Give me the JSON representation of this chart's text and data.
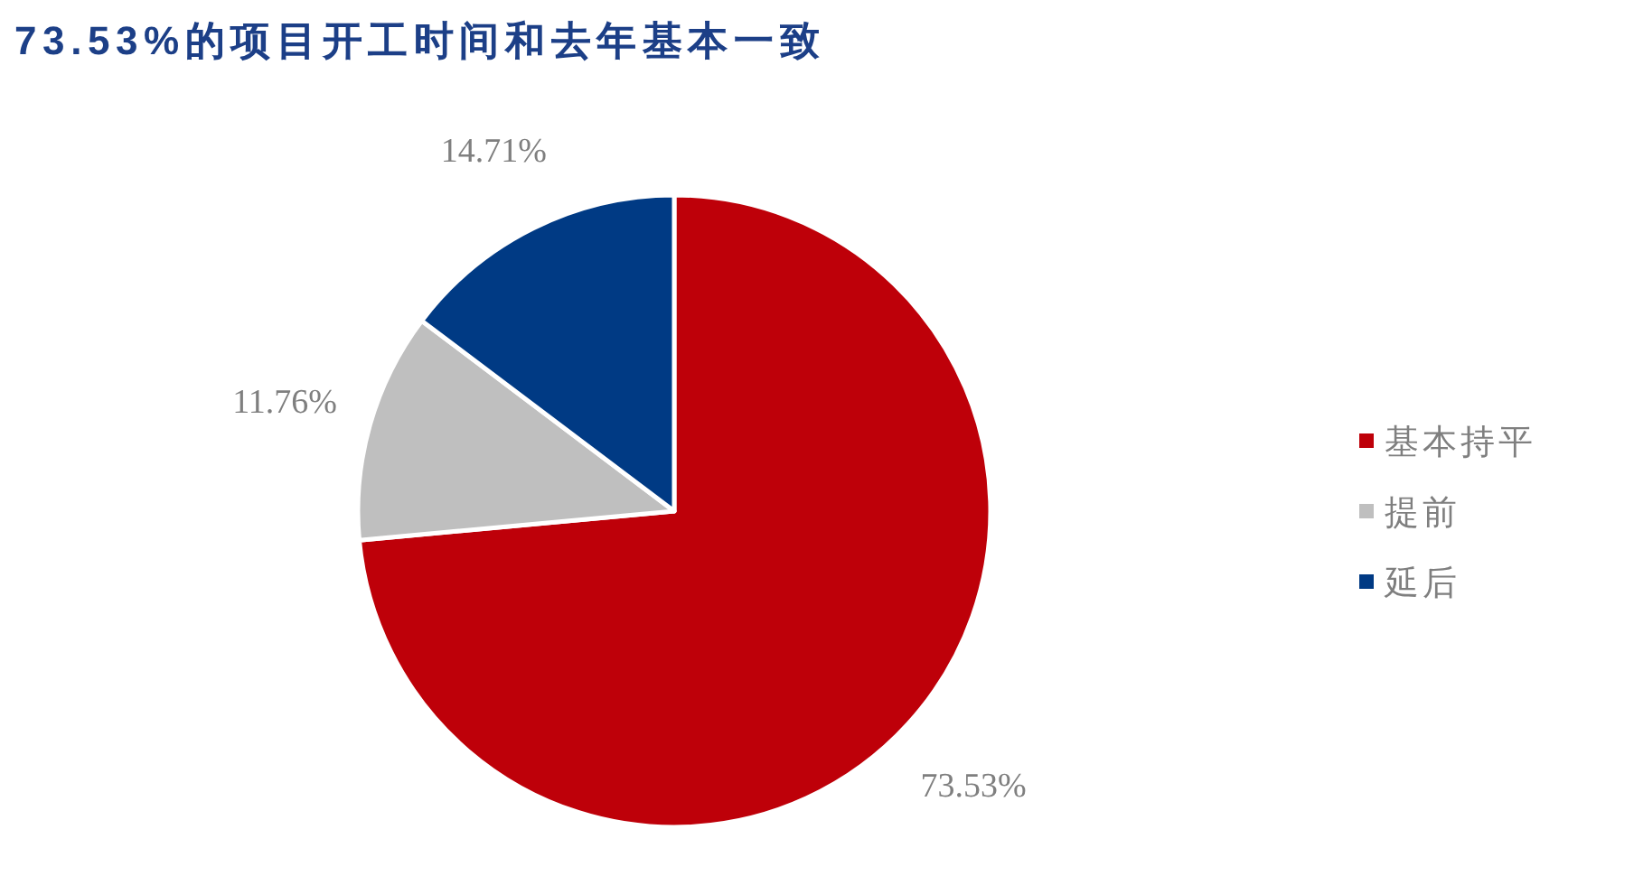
{
  "chart_data": {
    "type": "pie",
    "title": "73.53%的项目开工时间和去年基本一致",
    "categories": [
      "基本持平",
      "提前",
      "延后"
    ],
    "values": [
      73.53,
      11.76,
      14.71
    ],
    "colors": [
      "#be0009",
      "#bfbfbf",
      "#003a84"
    ],
    "value_labels": [
      "73.53%",
      "11.76%",
      "14.71%"
    ],
    "legend": "right"
  }
}
